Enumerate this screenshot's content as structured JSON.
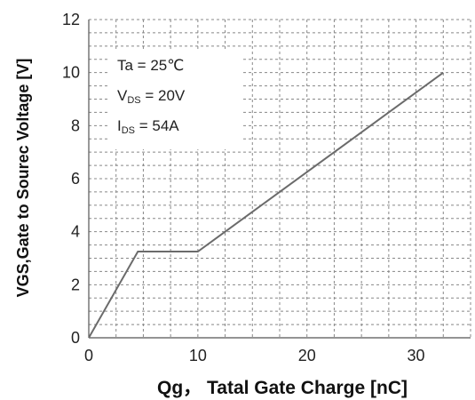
{
  "chart_data": {
    "type": "line",
    "x": [
      0,
      4.5,
      10,
      32.5
    ],
    "y": [
      0,
      3.25,
      3.25,
      10
    ],
    "xlabel": "Qg， Tatal Gate Charge [nC]",
    "ylabel": "VGS,Gate to Sourec Voltage [V]",
    "xlim": [
      0,
      35
    ],
    "ylim": [
      0,
      12
    ],
    "xticks": [
      0,
      10,
      20,
      30
    ],
    "yticks": [
      0,
      2,
      4,
      6,
      8,
      10,
      12
    ],
    "grid": true,
    "line_color": "#6b6b6b",
    "grid_color": "#888888",
    "annotations": {
      "line1": "Ta = 25℃",
      "line2_prefix": "V",
      "line2_sub": "DS",
      "line2_suffix": " = 20V",
      "line3_prefix": "I",
      "line3_sub": "DS",
      "line3_suffix": " = 54A"
    }
  }
}
